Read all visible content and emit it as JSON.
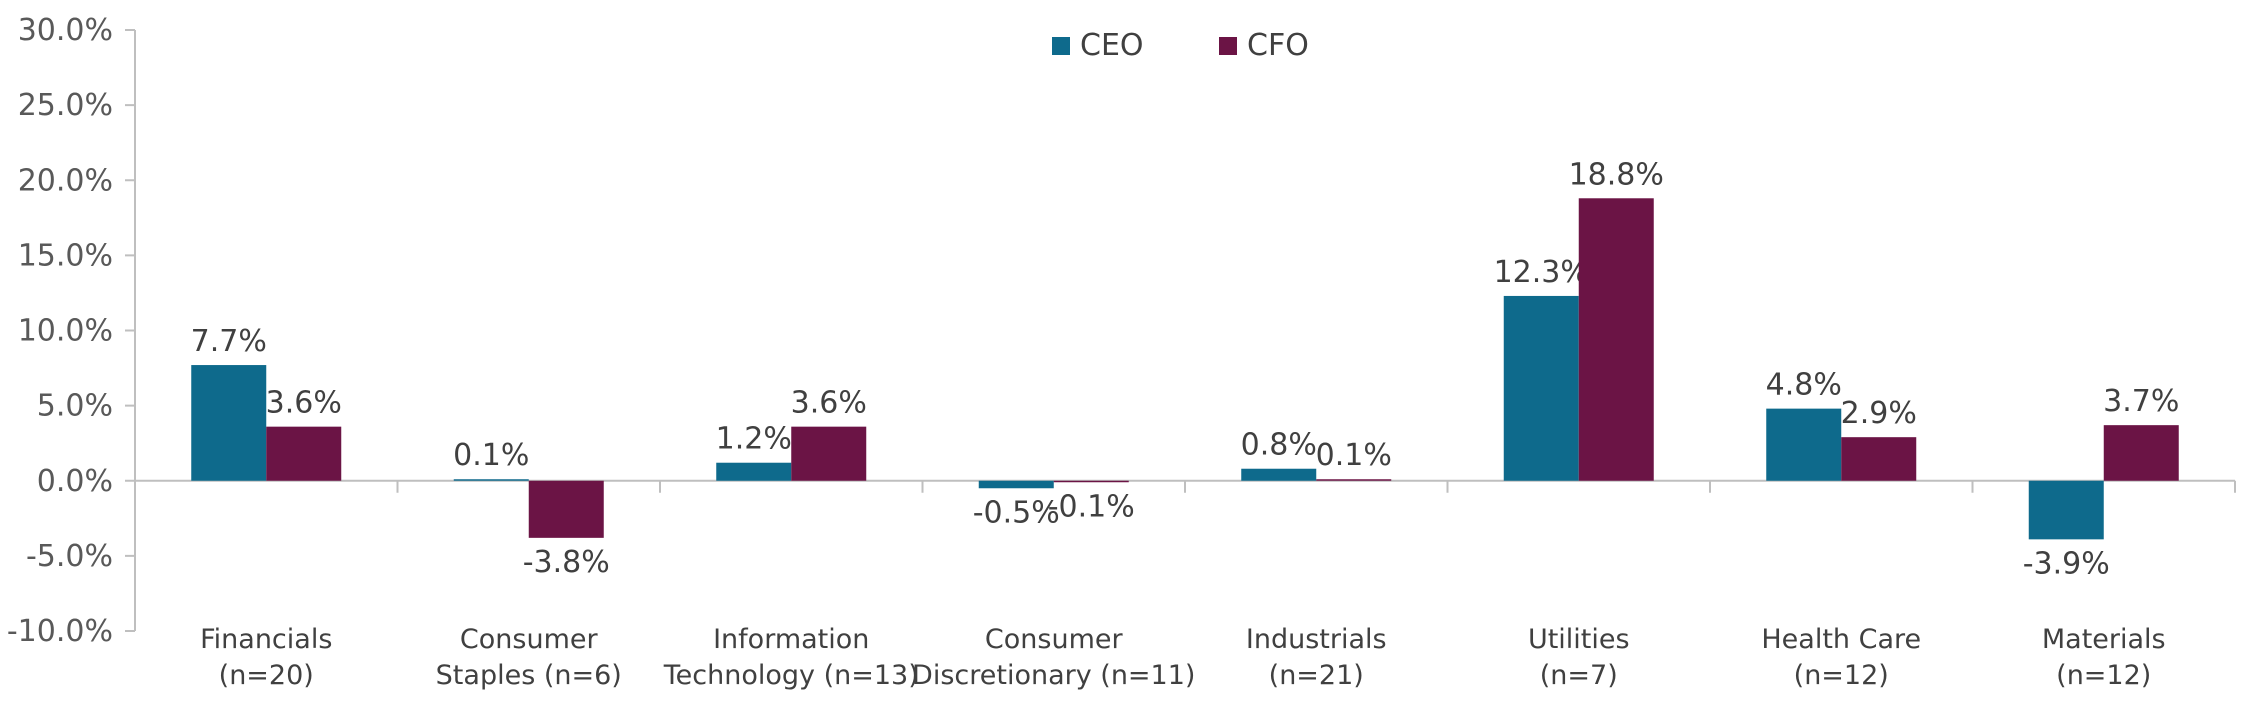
{
  "chart_data": {
    "type": "bar",
    "title": "",
    "xlabel": "",
    "ylabel": "",
    "ylim": [
      -10,
      30
    ],
    "yticks": [
      30,
      25,
      20,
      15,
      10,
      5,
      0,
      -5,
      -10
    ],
    "ytick_labels": [
      "30.0%",
      "25.0%",
      "20.0%",
      "15.0%",
      "10.0%",
      "5.0%",
      "0.0%",
      "-5.0%",
      "-10.0%"
    ],
    "categories": [
      [
        "Financials",
        "(n=20)"
      ],
      [
        "Consumer",
        "Staples (n=6)"
      ],
      [
        "Information",
        "Technology (n=13)"
      ],
      [
        "Consumer",
        "Discretionary (n=11)"
      ],
      [
        "Industrials",
        "(n=21)"
      ],
      [
        "Utilities",
        "(n=7)"
      ],
      [
        "Health Care",
        "(n=12)"
      ],
      [
        "Materials",
        "(n=12)"
      ]
    ],
    "series": [
      {
        "name": "CEO",
        "color": "#0e6a8c",
        "values": [
          7.7,
          0.1,
          1.2,
          -0.5,
          0.8,
          12.3,
          4.8,
          -3.9
        ],
        "labels": [
          "7.7%",
          "0.1%",
          "1.2%",
          "-0.5%",
          "0.8%",
          "12.3%",
          "4.8%",
          "-3.9%"
        ]
      },
      {
        "name": "CFO",
        "color": "#6b1445",
        "values": [
          3.6,
          -3.8,
          3.6,
          -0.1,
          0.1,
          18.8,
          2.9,
          3.7
        ],
        "labels": [
          "3.6%",
          "-3.8%",
          "3.6%",
          "-0.1%",
          "0.1%",
          "18.8%",
          "2.9%",
          "3.7%"
        ]
      }
    ],
    "legend_position": "top-center",
    "grid": false,
    "axis_color": "#bfbfbf"
  }
}
